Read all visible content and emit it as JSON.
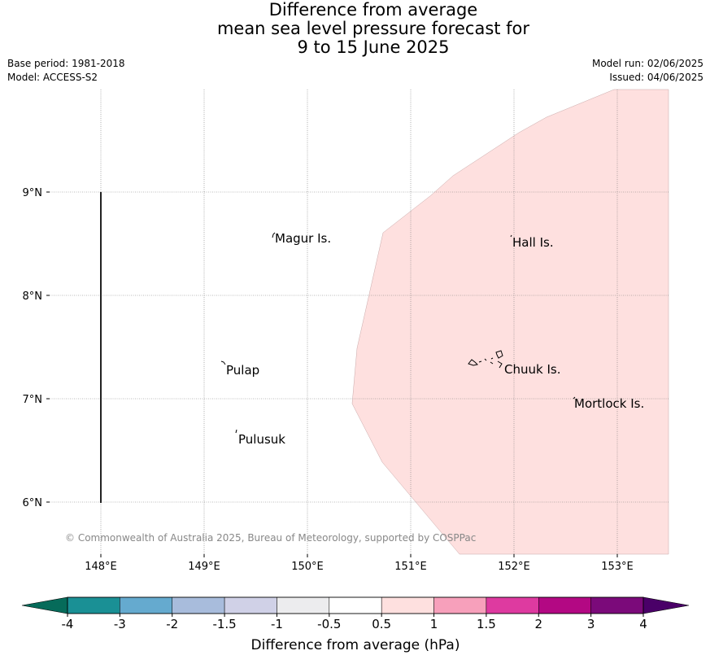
{
  "title": {
    "line1": "Difference from average",
    "line2": "mean sea level pressure forecast for",
    "line3": "9 to 15 June 2025"
  },
  "meta": {
    "base_period": "Base period: 1981-2018",
    "model": "Model: ACCESS-S2",
    "model_run": "Model run: 02/06/2025",
    "issued": "Issued: 04/06/2025"
  },
  "map": {
    "lon_range": [
      147.5,
      153.5
    ],
    "lat_range": [
      5.5,
      10.0
    ],
    "lon_ticks": [
      "148°E",
      "149°E",
      "150°E",
      "151°E",
      "152°E",
      "153°E"
    ],
    "lat_ticks": [
      "9°N",
      "8°N",
      "7°N",
      "6°N"
    ],
    "shaded_region_category": "0.5 to 1",
    "places": [
      {
        "name": "Magur Is."
      },
      {
        "name": "Hall Is."
      },
      {
        "name": "Pulap"
      },
      {
        "name": "Chuuk Is."
      },
      {
        "name": "Mortlock Is."
      },
      {
        "name": "Pulusuk"
      }
    ],
    "copyright": "© Commonwealth of Australia 2025, Bureau of Meteorology, supported by COSPPac"
  },
  "colorbar": {
    "title": "Difference from average (hPa)",
    "tick_labels": [
      "-4",
      "-3",
      "-2",
      "-1.5",
      "-1",
      "-0.5",
      "0.5",
      "1",
      "1.5",
      "2",
      "3",
      "4"
    ],
    "colors": [
      "#1a9095",
      "#65aacf",
      "#a8bcdc",
      "#d0d1e7",
      "#ececee",
      "#ffffff",
      "#fee0df",
      "#f7a0bb",
      "#de3aa0",
      "#b30883",
      "#7b0a7a"
    ],
    "under_color": "#066b5a",
    "over_color": "#4a0068"
  }
}
